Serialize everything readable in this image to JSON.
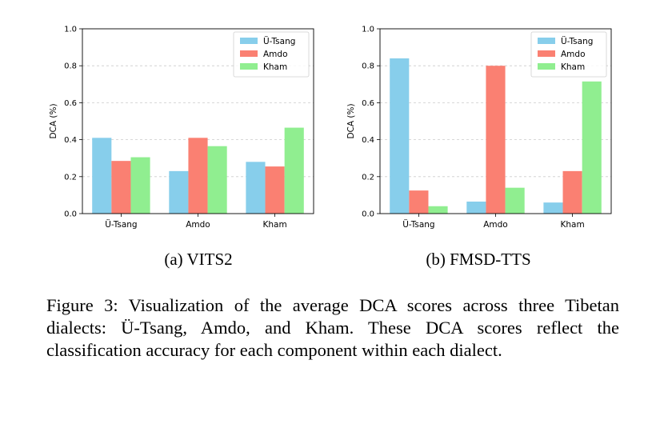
{
  "chart_data": [
    {
      "type": "bar",
      "subcaption": "(a) VITS2",
      "categories": [
        "Ü-Tsang",
        "Amdo",
        "Kham"
      ],
      "series": [
        {
          "name": "Ü-Tsang",
          "color": "#87CEEB",
          "values": [
            0.41,
            0.23,
            0.28
          ]
        },
        {
          "name": "Amdo",
          "color": "#FA8072",
          "values": [
            0.285,
            0.41,
            0.255
          ]
        },
        {
          "name": "Kham",
          "color": "#90EE90",
          "values": [
            0.305,
            0.365,
            0.465
          ]
        }
      ],
      "ylabel": "DCA (%)",
      "ylim": [
        0,
        1.0
      ],
      "yticks": [
        "0.0",
        "0.2",
        "0.4",
        "0.6",
        "0.8",
        "1.0"
      ],
      "grid": "y-dashed",
      "legend": "top-right"
    },
    {
      "type": "bar",
      "subcaption": "(b) FMSD-TTS",
      "categories": [
        "Ü-Tsang",
        "Amdo",
        "Kham"
      ],
      "series": [
        {
          "name": "Ü-Tsang",
          "color": "#87CEEB",
          "values": [
            0.84,
            0.065,
            0.06
          ]
        },
        {
          "name": "Amdo",
          "color": "#FA8072",
          "values": [
            0.125,
            0.8,
            0.23
          ]
        },
        {
          "name": "Kham",
          "color": "#90EE90",
          "values": [
            0.04,
            0.14,
            0.715
          ]
        }
      ],
      "ylabel": "DCA (%)",
      "ylim": [
        0,
        1.0
      ],
      "yticks": [
        "0.0",
        "0.2",
        "0.4",
        "0.6",
        "0.8",
        "1.0"
      ],
      "grid": "y-dashed",
      "legend": "top-right"
    }
  ],
  "figure_caption": "Figure 3: Visualization of the average DCA scores across three Tibetan dialects: Ü-Tsang, Amdo, and Kham. These DCA scores reflect the classification accuracy for each component within each dialect."
}
